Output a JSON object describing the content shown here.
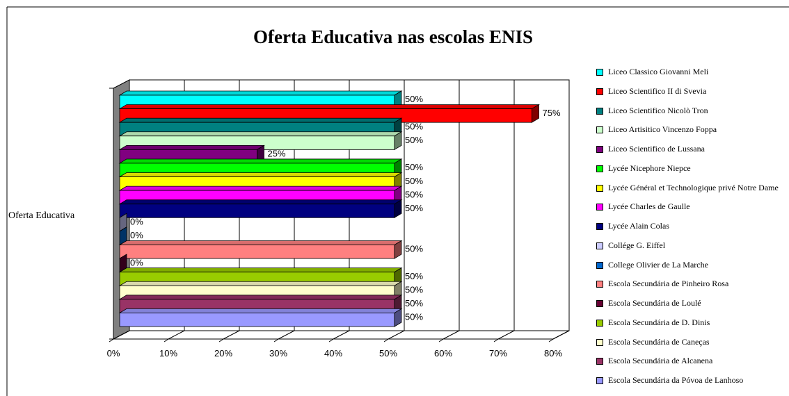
{
  "chart_data": {
    "type": "bar3d_horizontal",
    "title": "Oferta Educativa nas escolas ENIS",
    "categories": [
      "Oferta Educativa"
    ],
    "xlim": [
      0,
      80
    ],
    "xticks": [
      {
        "value": 0,
        "label": "0%"
      },
      {
        "value": 10,
        "label": "10%"
      },
      {
        "value": 20,
        "label": "20%"
      },
      {
        "value": 30,
        "label": "30%"
      },
      {
        "value": 40,
        "label": "40%"
      },
      {
        "value": 50,
        "label": "50%"
      },
      {
        "value": 60,
        "label": "60%"
      },
      {
        "value": 70,
        "label": "70%"
      },
      {
        "value": 80,
        "label": "80%"
      }
    ],
    "grid": true,
    "legend": "right",
    "series": [
      {
        "name": "Liceo Classico Giovanni Meli",
        "color": "#00ffff",
        "values": [
          50
        ],
        "value_labels": [
          "50%"
        ]
      },
      {
        "name": "Liceo Scientifico II di Svevia",
        "color": "#ff0000",
        "values": [
          75
        ],
        "value_labels": [
          "75%"
        ]
      },
      {
        "name": "Liceo Scientifico Nicolò Tron",
        "color": "#008080",
        "values": [
          50
        ],
        "value_labels": [
          "50%"
        ]
      },
      {
        "name": "Liceo Artisitico Vincenzo Foppa",
        "color": "#ccffcc",
        "values": [
          50
        ],
        "value_labels": [
          "50%"
        ]
      },
      {
        "name": "Liceo Scientifico de Lussana",
        "color": "#800080",
        "values": [
          25
        ],
        "value_labels": [
          "25%"
        ]
      },
      {
        "name": "Lycée Nicephore Niepce",
        "color": "#00ff00",
        "values": [
          50
        ],
        "value_labels": [
          "50%"
        ]
      },
      {
        "name": "Lycée Général et Technologique privé Notre Dame",
        "color": "#ffff00",
        "values": [
          50
        ],
        "value_labels": [
          "50%"
        ]
      },
      {
        "name": "Lycée Charles de Gaulle",
        "color": "#ff00ff",
        "values": [
          50
        ],
        "value_labels": [
          "50%"
        ]
      },
      {
        "name": "Lycée Alain Colas",
        "color": "#000080",
        "values": [
          50
        ],
        "value_labels": [
          "50%"
        ]
      },
      {
        "name": "Collége G. Eiffel",
        "color": "#ccccff",
        "values": [
          0
        ],
        "value_labels": [
          "0%"
        ]
      },
      {
        "name": "College Olivier de La Marche",
        "color": "#0066cc",
        "values": [
          0
        ],
        "value_labels": [
          "0%"
        ]
      },
      {
        "name": "Escola Secundária de Pinheiro Rosa",
        "color": "#ff8080",
        "values": [
          50
        ],
        "value_labels": [
          "50%"
        ]
      },
      {
        "name": "Escola Secundária de Loulé",
        "color": "#660033",
        "values": [
          0
        ],
        "value_labels": [
          "0%"
        ]
      },
      {
        "name": "Escola Secundária de D. Dinis",
        "color": "#99cc00",
        "values": [
          50
        ],
        "value_labels": [
          "50%"
        ]
      },
      {
        "name": "Escola Secundária de Caneças",
        "color": "#ffffcc",
        "values": [
          50
        ],
        "value_labels": [
          "50%"
        ]
      },
      {
        "name": "Escola Secundária de Alcanena",
        "color": "#993366",
        "values": [
          50
        ],
        "value_labels": [
          "50%"
        ]
      },
      {
        "name": "Escola Secundária da Póvoa de Lanhoso",
        "color": "#9999ff",
        "values": [
          50
        ],
        "value_labels": [
          "50%"
        ]
      }
    ]
  }
}
